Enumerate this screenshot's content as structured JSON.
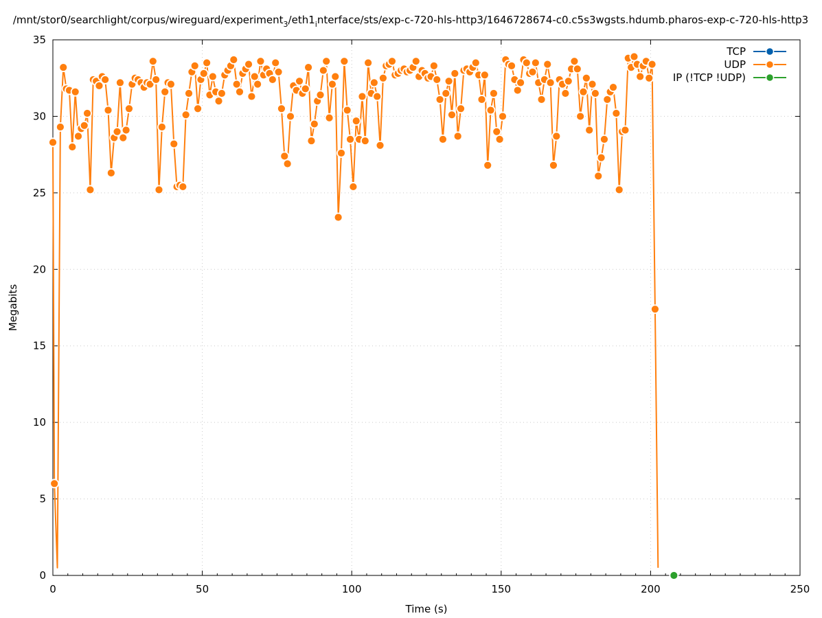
{
  "chart_data": {
    "type": "line",
    "title": "/mnt/stor0/searchlight/corpus/wireguard/experiment_3/eth1_interface/sts/exp-c-720-hls-http3/1646728674-c0.c5s3wgsts.hdumb.pharos-exp-c-720-hls-http3",
    "title_parts": {
      "a": "/mnt/stor0/searchlight/corpus/wireguard/experiment",
      "sub1": "3",
      "b": "/eth1",
      "sub2": "i",
      "c": "nterface/sts/exp-c-720-hls-http3/1646728674-c0.c5s3wgsts.hdumb.pharos-exp-c-720-hls-http3"
    },
    "xlabel": "Time (s)",
    "ylabel": "Megabits",
    "xlim": [
      0,
      250
    ],
    "ylim": [
      0,
      35
    ],
    "x_ticks": [
      0,
      50,
      100,
      150,
      200,
      250
    ],
    "y_ticks": [
      0,
      5,
      10,
      15,
      20,
      25,
      30,
      35
    ],
    "grid": true,
    "legend_position": "top-right",
    "series": [
      {
        "name": "TCP",
        "color": "#0060ad",
        "x": [],
        "y": []
      },
      {
        "name": "UDP",
        "color": "#ff7f0e",
        "x": [
          0,
          0.5,
          1.5,
          2.5,
          3.5,
          4.5,
          5.5,
          6.5,
          7.5,
          8.5,
          9.5,
          10.5,
          11.5,
          12.5,
          13.5,
          14.5,
          15.5,
          16.5,
          17.5,
          18.5,
          19.5,
          20.5,
          21.5,
          22.5,
          23.5,
          24.5,
          25.5,
          26.5,
          27.5,
          28.5,
          29.5,
          30.5,
          31.5,
          32.5,
          33.5,
          34.5,
          35.5,
          36.5,
          37.5,
          38.5,
          39.5,
          40.5,
          41.5,
          42.5,
          43.5,
          44.5,
          45.5,
          46.5,
          47.5,
          48.5,
          49.5,
          50.5,
          51.5,
          52.5,
          53.5,
          54.5,
          55.5,
          56.5,
          57.5,
          58.5,
          59.5,
          60.5,
          61.5,
          62.5,
          63.5,
          64.5,
          65.5,
          66.5,
          67.5,
          68.5,
          69.5,
          70.5,
          71.5,
          72.5,
          73.5,
          74.5,
          75.5,
          76.5,
          77.5,
          78.5,
          79.5,
          80.5,
          81.5,
          82.5,
          83.5,
          84.5,
          85.5,
          86.5,
          87.5,
          88.5,
          89.5,
          90.5,
          91.5,
          92.5,
          93.5,
          94.5,
          95.5,
          96.5,
          97.5,
          98.5,
          99.5,
          100.5,
          101.5,
          102.5,
          103.5,
          104.5,
          105.5,
          106.5,
          107.5,
          108.5,
          109.5,
          110.5,
          111.5,
          112.5,
          113.5,
          114.5,
          115.5,
          116.5,
          117.5,
          118.5,
          119.5,
          120.5,
          121.5,
          122.5,
          123.5,
          124.5,
          125.5,
          126.5,
          127.5,
          128.5,
          129.5,
          130.5,
          131.5,
          132.5,
          133.5,
          134.5,
          135.5,
          136.5,
          137.5,
          138.5,
          139.5,
          140.5,
          141.5,
          142.5,
          143.5,
          144.5,
          145.5,
          146.5,
          147.5,
          148.5,
          149.5,
          150.5,
          151.5,
          152.5,
          153.5,
          154.5,
          155.5,
          156.5,
          157.5,
          158.5,
          159.5,
          160.5,
          161.5,
          162.5,
          163.5,
          164.5,
          165.5,
          166.5,
          167.5,
          168.5,
          169.5,
          170.5,
          171.5,
          172.5,
          173.5,
          174.5,
          175.5,
          176.5,
          177.5,
          178.5,
          179.5,
          180.5,
          181.5,
          182.5,
          183.5,
          184.5,
          185.5,
          186.5,
          187.5,
          188.5,
          189.5,
          190.5,
          191.5,
          192.5,
          193.5,
          194.5,
          195.5,
          196.5,
          197.5,
          198.5,
          199.5,
          200.5,
          201.5,
          202.5
        ],
        "y": [
          28.3,
          6.0,
          0.5,
          29.3,
          33.2,
          31.8,
          31.7,
          28.0,
          31.6,
          28.7,
          29.2,
          29.4,
          30.2,
          25.2,
          32.4,
          32.3,
          32.0,
          32.6,
          32.4,
          30.4,
          26.3,
          28.6,
          29.0,
          32.2,
          28.6,
          29.1,
          30.5,
          32.1,
          32.5,
          32.4,
          32.2,
          31.9,
          32.2,
          32.1,
          33.6,
          32.4,
          25.2,
          29.3,
          31.6,
          32.2,
          32.1,
          28.2,
          25.4,
          25.5,
          25.4,
          30.1,
          31.5,
          32.9,
          33.3,
          30.5,
          32.4,
          32.8,
          33.5,
          31.4,
          32.6,
          31.6,
          31.0,
          31.5,
          32.7,
          33.0,
          33.3,
          33.7,
          32.1,
          31.6,
          32.8,
          33.1,
          33.4,
          31.3,
          32.6,
          32.1,
          33.6,
          32.7,
          33.1,
          32.8,
          32.4,
          33.5,
          32.9,
          30.5,
          27.4,
          26.9,
          30.0,
          32.0,
          31.7,
          32.3,
          31.5,
          31.8,
          33.2,
          28.4,
          29.5,
          31.0,
          31.4,
          33.0,
          33.6,
          29.9,
          32.1,
          32.6,
          23.4,
          27.6,
          33.6,
          30.4,
          28.5,
          25.4,
          29.7,
          28.5,
          31.3,
          28.4,
          33.5,
          31.5,
          32.2,
          31.3,
          28.1,
          32.5,
          33.3,
          33.4,
          33.6,
          32.7,
          32.8,
          33.0,
          33.1,
          32.9,
          33.0,
          33.2,
          33.6,
          32.6,
          33.0,
          32.8,
          32.5,
          32.6,
          33.3,
          32.4,
          31.1,
          28.5,
          31.5,
          32.3,
          30.1,
          32.8,
          28.7,
          30.5,
          33.0,
          33.1,
          32.9,
          33.2,
          33.5,
          32.7,
          31.1,
          32.7,
          26.8,
          30.4,
          31.5,
          29.0,
          28.5,
          30.0,
          33.7,
          33.4,
          33.3,
          32.4,
          31.7,
          32.2,
          33.7,
          33.5,
          32.8,
          32.9,
          33.5,
          32.2,
          31.1,
          32.4,
          33.4,
          32.2,
          26.8,
          28.7,
          32.4,
          32.1,
          31.5,
          32.3,
          33.1,
          33.6,
          33.1,
          30.0,
          31.6,
          32.5,
          29.1,
          32.1,
          31.5,
          26.1,
          27.3,
          28.5,
          31.1,
          31.6,
          31.9,
          30.2,
          25.2,
          29.0,
          29.1,
          33.8,
          33.2,
          33.9,
          33.4,
          32.6,
          33.3,
          33.6,
          32.5,
          33.4,
          17.4,
          0.5
        ],
        "marker_x": [
          0,
          0.5,
          2.5,
          3.5,
          4.5,
          5.5,
          6.5,
          7.5,
          8.5,
          9.5,
          10.5,
          11.5,
          12.5,
          13.5,
          14.5,
          15.5,
          16.5,
          17.5,
          18.5,
          19.5,
          20.5,
          21.5,
          22.5,
          23.5,
          24.5,
          25.5,
          26.5,
          27.5,
          28.5,
          29.5,
          30.5,
          31.5,
          32.5,
          33.5,
          34.5,
          35.5,
          36.5,
          37.5,
          38.5,
          39.5,
          40.5,
          41.5,
          42.5,
          43.5,
          44.5,
          45.5,
          46.5,
          47.5,
          48.5,
          49.5,
          50.5,
          51.5,
          52.5,
          53.5,
          54.5,
          55.5,
          56.5,
          57.5,
          58.5,
          59.5,
          60.5,
          61.5,
          62.5,
          63.5,
          64.5,
          65.5,
          66.5,
          67.5,
          68.5,
          69.5,
          70.5,
          71.5,
          72.5,
          73.5,
          74.5,
          75.5,
          76.5,
          77.5,
          78.5,
          79.5,
          80.5,
          81.5,
          82.5,
          83.5,
          84.5,
          85.5,
          86.5,
          87.5,
          88.5,
          89.5,
          90.5,
          91.5,
          92.5,
          93.5,
          94.5,
          95.5,
          96.5,
          97.5,
          98.5,
          99.5,
          100.5,
          101.5,
          102.5,
          103.5,
          104.5,
          105.5,
          106.5,
          107.5,
          108.5,
          109.5,
          110.5,
          111.5,
          112.5,
          113.5,
          114.5,
          115.5,
          116.5,
          117.5,
          118.5,
          119.5,
          120.5,
          121.5,
          122.5,
          123.5,
          124.5,
          125.5,
          126.5,
          127.5,
          128.5,
          129.5,
          130.5,
          131.5,
          132.5,
          133.5,
          134.5,
          135.5,
          136.5,
          137.5,
          138.5,
          139.5,
          140.5,
          141.5,
          142.5,
          143.5,
          144.5,
          145.5,
          146.5,
          147.5,
          148.5,
          149.5,
          150.5,
          151.5,
          152.5,
          153.5,
          154.5,
          155.5,
          156.5,
          157.5,
          158.5,
          159.5,
          160.5,
          161.5,
          162.5,
          163.5,
          164.5,
          165.5,
          166.5,
          167.5,
          168.5,
          169.5,
          170.5,
          171.5,
          172.5,
          173.5,
          174.5,
          175.5,
          176.5,
          177.5,
          178.5,
          179.5,
          180.5,
          181.5,
          182.5,
          183.5,
          184.5,
          185.5,
          186.5,
          187.5,
          188.5,
          189.5,
          190.5,
          191.5,
          192.5,
          193.5,
          194.5,
          195.5,
          196.5,
          197.5,
          198.5,
          199.5,
          200.5,
          201.5
        ],
        "marker_y": [
          28.3,
          6.0,
          29.3,
          33.2,
          31.8,
          31.7,
          28.0,
          31.6,
          28.7,
          29.2,
          29.4,
          30.2,
          25.2,
          32.4,
          32.3,
          32.0,
          32.6,
          32.4,
          30.4,
          26.3,
          28.6,
          29.0,
          32.2,
          28.6,
          29.1,
          30.5,
          32.1,
          32.5,
          32.4,
          32.2,
          31.9,
          32.2,
          32.1,
          33.6,
          32.4,
          25.2,
          29.3,
          31.6,
          32.2,
          32.1,
          28.2,
          25.4,
          25.5,
          25.4,
          30.1,
          31.5,
          32.9,
          33.3,
          30.5,
          32.4,
          32.8,
          33.5,
          31.4,
          32.6,
          31.6,
          31.0,
          31.5,
          32.7,
          33.0,
          33.3,
          33.7,
          32.1,
          31.6,
          32.8,
          33.1,
          33.4,
          31.3,
          32.6,
          32.1,
          33.6,
          32.7,
          33.1,
          32.8,
          32.4,
          33.5,
          32.9,
          30.5,
          27.4,
          26.9,
          30.0,
          32.0,
          31.7,
          32.3,
          31.5,
          31.8,
          33.2,
          28.4,
          29.5,
          31.0,
          31.4,
          33.0,
          33.6,
          29.9,
          32.1,
          32.6,
          23.4,
          27.6,
          33.6,
          30.4,
          28.5,
          25.4,
          29.7,
          28.5,
          31.3,
          28.4,
          33.5,
          31.5,
          32.2,
          31.3,
          28.1,
          32.5,
          33.3,
          33.4,
          33.6,
          32.7,
          32.8,
          33.0,
          33.1,
          32.9,
          33.0,
          33.2,
          33.6,
          32.6,
          33.0,
          32.8,
          32.5,
          32.6,
          33.3,
          32.4,
          31.1,
          28.5,
          31.5,
          32.3,
          30.1,
          32.8,
          28.7,
          30.5,
          33.0,
          33.1,
          32.9,
          33.2,
          33.5,
          32.7,
          31.1,
          32.7,
          26.8,
          30.4,
          31.5,
          29.0,
          28.5,
          30.0,
          33.7,
          33.4,
          33.3,
          32.4,
          31.7,
          32.2,
          33.7,
          33.5,
          32.8,
          32.9,
          33.5,
          32.2,
          31.1,
          32.4,
          33.4,
          32.2,
          26.8,
          28.7,
          32.4,
          32.1,
          31.5,
          32.3,
          33.1,
          33.6,
          33.1,
          30.0,
          31.6,
          32.5,
          29.1,
          32.1,
          31.5,
          26.1,
          27.3,
          28.5,
          31.1,
          31.6,
          31.9,
          30.2,
          25.2,
          29.0,
          29.1,
          33.8,
          33.2,
          33.9,
          33.4,
          32.6,
          33.3,
          33.6,
          32.5,
          33.4,
          17.4
        ]
      },
      {
        "name": "IP (!TCP  !UDP)",
        "color": "#2ca02c",
        "x": [
          207.8
        ],
        "y": [
          0
        ]
      }
    ]
  }
}
